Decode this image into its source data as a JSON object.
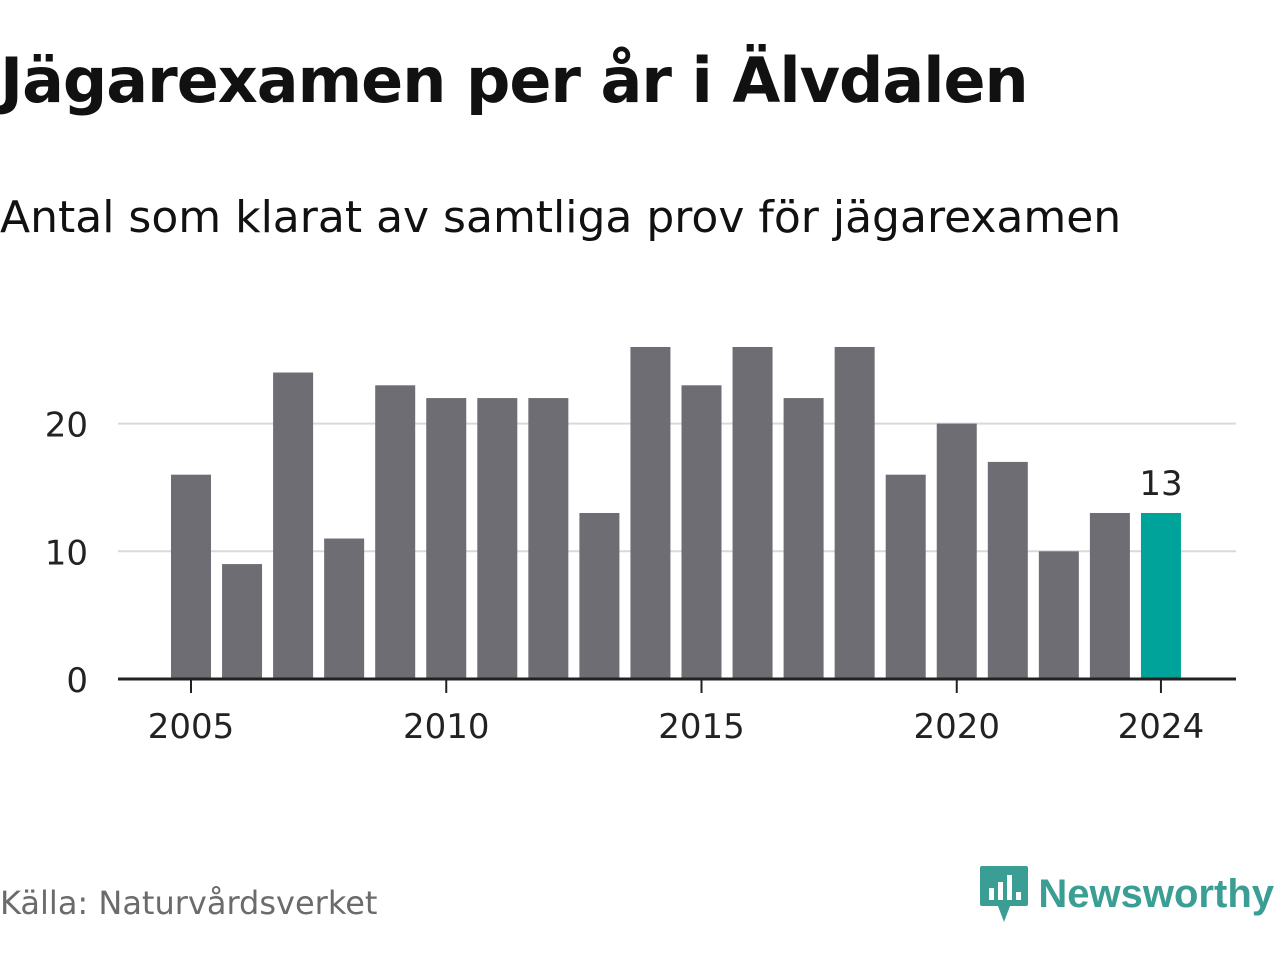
{
  "header": {
    "title": "Jägarexamen per år i Älvdalen",
    "subtitle": "Antal som klarat av samtliga prov för jägarexamen"
  },
  "footer": {
    "source": "Källa: Naturvårdsverket",
    "brand": "Newsworthy",
    "brand_icon": "bar-chart-speech-bubble-icon"
  },
  "colors": {
    "bar": "#6e6d73",
    "highlight": "#00a39a",
    "grid": "#d9d9d9",
    "axis": "#222222",
    "brand": "#3a9e94"
  },
  "chart_data": {
    "type": "bar",
    "title": "Jägarexamen per år i Älvdalen",
    "subtitle": "Antal som klarat av samtliga prov för jägarexamen",
    "xlabel": "",
    "ylabel": "",
    "categories": [
      2005,
      2006,
      2007,
      2008,
      2009,
      2010,
      2011,
      2012,
      2013,
      2014,
      2015,
      2016,
      2017,
      2018,
      2019,
      2020,
      2021,
      2022,
      2023,
      2024
    ],
    "values": [
      16,
      9,
      24,
      11,
      23,
      22,
      22,
      22,
      13,
      26,
      23,
      26,
      22,
      26,
      16,
      20,
      17,
      10,
      13,
      13
    ],
    "highlight": {
      "category": 2024,
      "label": "13"
    },
    "x_ticks": [
      "2005",
      "2010",
      "2015",
      "2020",
      "2024"
    ],
    "y_ticks": [
      "0",
      "10",
      "20"
    ],
    "ylim": [
      0,
      27
    ],
    "grid": true,
    "legend": "none"
  }
}
